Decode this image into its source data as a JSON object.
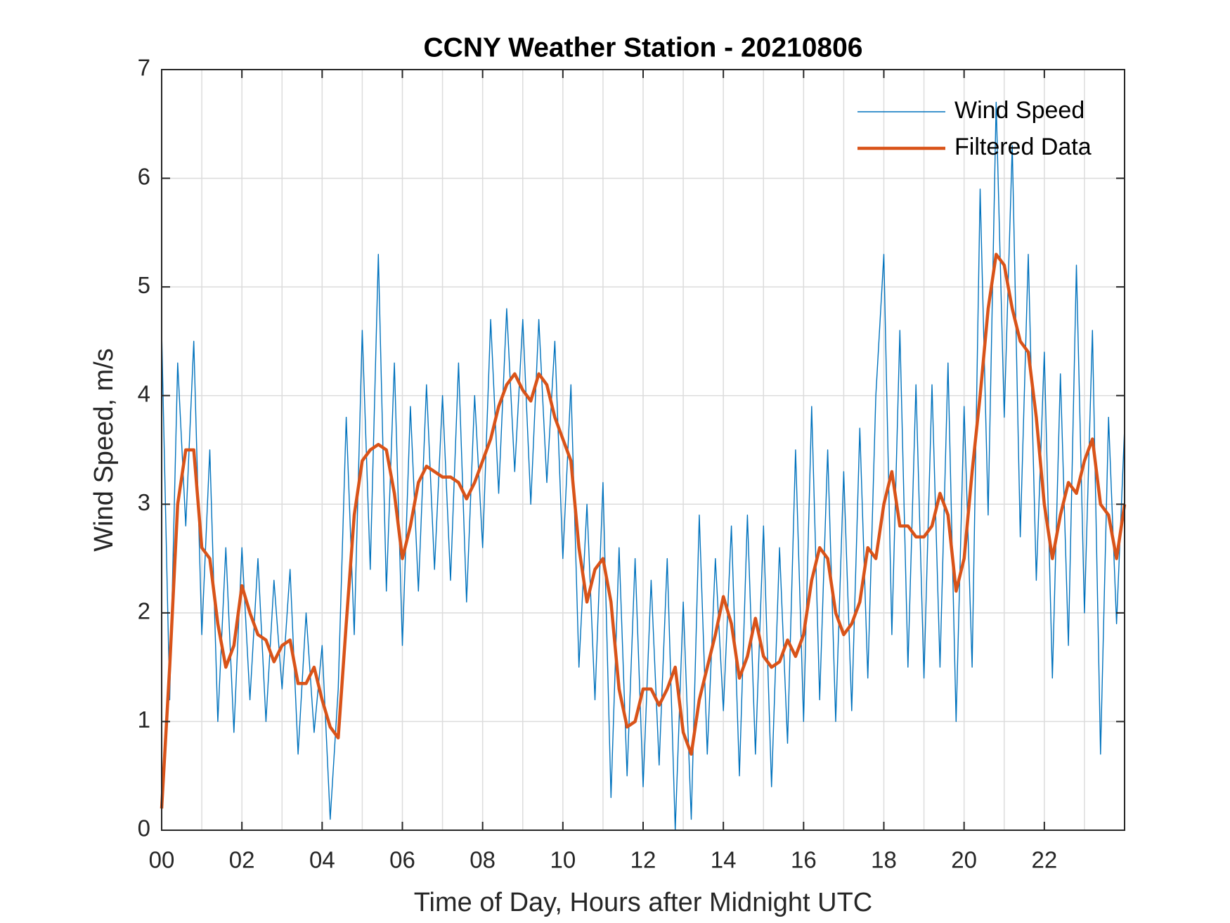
{
  "chart_data": {
    "type": "line",
    "title": "CCNY Weather Station - 20210806",
    "xlabel": "Time of Day, Hours after Midnight UTC",
    "ylabel": "Wind Speed, m/s",
    "xlim": [
      0,
      24
    ],
    "ylim": [
      0,
      7
    ],
    "xticks": [
      {
        "value": 0,
        "label": "00"
      },
      {
        "value": 2,
        "label": "02"
      },
      {
        "value": 4,
        "label": "04"
      },
      {
        "value": 6,
        "label": "06"
      },
      {
        "value": 8,
        "label": "08"
      },
      {
        "value": 10,
        "label": "10"
      },
      {
        "value": 12,
        "label": "12"
      },
      {
        "value": 14,
        "label": "14"
      },
      {
        "value": 16,
        "label": "16"
      },
      {
        "value": 18,
        "label": "18"
      },
      {
        "value": 20,
        "label": "20"
      },
      {
        "value": 22,
        "label": "22"
      }
    ],
    "xminorticks": [
      1,
      3,
      5,
      7,
      9,
      11,
      13,
      15,
      17,
      19,
      21,
      23
    ],
    "yticks": [
      0,
      1,
      2,
      3,
      4,
      5,
      6,
      7
    ],
    "grid": true,
    "legend": "northeast",
    "x": [
      0,
      0.2,
      0.4,
      0.6,
      0.8,
      1,
      1.2,
      1.4,
      1.6,
      1.8,
      2,
      2.2,
      2.4,
      2.6,
      2.8,
      3,
      3.2,
      3.4,
      3.6,
      3.8,
      4,
      4.2,
      4.4,
      4.6,
      4.8,
      5,
      5.2,
      5.4,
      5.6,
      5.8,
      6,
      6.2,
      6.4,
      6.6,
      6.8,
      7,
      7.2,
      7.4,
      7.6,
      7.8,
      8,
      8.2,
      8.4,
      8.6,
      8.8,
      9,
      9.2,
      9.4,
      9.6,
      9.8,
      10,
      10.2,
      10.4,
      10.6,
      10.8,
      11,
      11.2,
      11.4,
      11.6,
      11.8,
      12,
      12.2,
      12.4,
      12.6,
      12.8,
      13,
      13.2,
      13.4,
      13.6,
      13.8,
      14,
      14.2,
      14.4,
      14.6,
      14.8,
      15,
      15.2,
      15.4,
      15.6,
      15.8,
      16,
      16.2,
      16.4,
      16.6,
      16.8,
      17,
      17.2,
      17.4,
      17.6,
      17.8,
      18,
      18.2,
      18.4,
      18.6,
      18.8,
      19,
      19.2,
      19.4,
      19.6,
      19.8,
      20,
      20.2,
      20.4,
      20.6,
      20.8,
      21,
      21.2,
      21.4,
      21.6,
      21.8,
      22,
      22.2,
      22.4,
      22.6,
      22.8,
      23,
      23.2,
      23.4,
      23.6,
      23.8,
      24
    ],
    "series": [
      {
        "name": "Wind Speed",
        "color": "#0072bd",
        "width": 1.4,
        "values": [
          4.6,
          1.2,
          4.3,
          2.8,
          4.5,
          1.8,
          3.5,
          1.0,
          2.6,
          0.9,
          2.6,
          1.2,
          2.5,
          1.0,
          2.3,
          1.3,
          2.4,
          0.7,
          2.0,
          0.9,
          1.7,
          0.1,
          1.3,
          3.8,
          1.8,
          4.6,
          2.4,
          5.3,
          2.2,
          4.3,
          1.7,
          3.9,
          2.2,
          4.1,
          2.4,
          4.0,
          2.3,
          4.3,
          2.1,
          4.0,
          2.6,
          4.7,
          3.1,
          4.8,
          3.3,
          4.7,
          3.0,
          4.7,
          3.2,
          4.5,
          2.5,
          4.1,
          1.5,
          3.0,
          1.2,
          3.2,
          0.3,
          2.6,
          0.5,
          2.5,
          0.4,
          2.3,
          0.6,
          2.5,
          0.0,
          2.1,
          0.1,
          2.9,
          0.7,
          2.5,
          1.1,
          2.8,
          0.5,
          2.9,
          0.7,
          2.8,
          0.4,
          2.6,
          0.8,
          3.5,
          1.0,
          3.9,
          1.2,
          3.5,
          1.0,
          3.3,
          1.1,
          3.7,
          1.4,
          4.0,
          5.3,
          1.8,
          4.6,
          1.5,
          4.1,
          1.4,
          4.1,
          1.5,
          4.3,
          1.0,
          3.9,
          1.5,
          5.9,
          2.9,
          6.7,
          3.8,
          6.3,
          2.7,
          5.3,
          2.3,
          4.4,
          1.4,
          4.2,
          1.7,
          5.2,
          2.0,
          4.6,
          0.7,
          3.8,
          1.9,
          3.7
        ]
      },
      {
        "name": "Filtered Data",
        "color": "#d95319",
        "width": 4.5,
        "values": [
          0.2,
          1.5,
          3.0,
          3.5,
          3.5,
          2.6,
          2.5,
          1.9,
          1.5,
          1.7,
          2.25,
          2.0,
          1.8,
          1.75,
          1.55,
          1.7,
          1.75,
          1.35,
          1.35,
          1.5,
          1.2,
          0.95,
          0.85,
          1.9,
          2.9,
          3.4,
          3.5,
          3.55,
          3.5,
          3.1,
          2.5,
          2.8,
          3.2,
          3.35,
          3.3,
          3.25,
          3.25,
          3.2,
          3.05,
          3.2,
          3.4,
          3.6,
          3.9,
          4.1,
          4.2,
          4.05,
          3.95,
          4.2,
          4.1,
          3.8,
          3.6,
          3.4,
          2.6,
          2.1,
          2.4,
          2.5,
          2.1,
          1.3,
          0.95,
          1.0,
          1.3,
          1.3,
          1.15,
          1.3,
          1.5,
          0.9,
          0.7,
          1.2,
          1.5,
          1.8,
          2.15,
          1.9,
          1.4,
          1.6,
          1.95,
          1.6,
          1.5,
          1.55,
          1.75,
          1.6,
          1.8,
          2.3,
          2.6,
          2.5,
          2.0,
          1.8,
          1.9,
          2.1,
          2.6,
          2.5,
          3.0,
          3.3,
          2.8,
          2.8,
          2.7,
          2.7,
          2.8,
          3.1,
          2.9,
          2.2,
          2.5,
          3.3,
          4.0,
          4.8,
          5.3,
          5.2,
          4.8,
          4.5,
          4.4,
          3.8,
          3.0,
          2.5,
          2.9,
          3.2,
          3.1,
          3.4,
          3.6,
          3.0,
          2.9,
          2.5,
          3.0
        ]
      }
    ]
  }
}
